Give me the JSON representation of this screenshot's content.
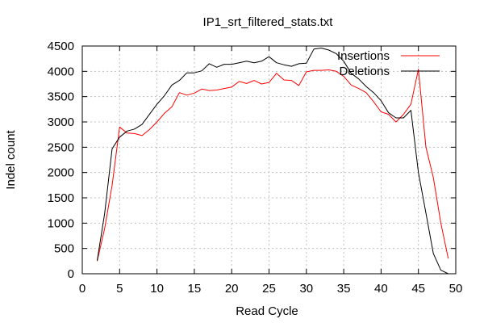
{
  "chart_data": {
    "type": "line",
    "title": "IP1_srt_filtered_stats.txt",
    "xlabel": "Read Cycle",
    "ylabel": "Indel count",
    "xlim": [
      0,
      50
    ],
    "ylim": [
      0,
      4500
    ],
    "xticks": [
      0,
      5,
      10,
      15,
      20,
      25,
      30,
      35,
      40,
      45,
      50
    ],
    "yticks": [
      0,
      500,
      1000,
      1500,
      2000,
      2500,
      3000,
      3500,
      4000,
      4500
    ],
    "grid": true,
    "legend_position": "top-right",
    "series": [
      {
        "name": "Insertions",
        "color": "#ff0000",
        "points": [
          [
            2,
            250
          ],
          [
            3,
            900
          ],
          [
            4,
            1750
          ],
          [
            5,
            2900
          ],
          [
            6,
            2780
          ],
          [
            7,
            2770
          ],
          [
            8,
            2730
          ],
          [
            9,
            2850
          ],
          [
            10,
            3000
          ],
          [
            11,
            3170
          ],
          [
            12,
            3300
          ],
          [
            13,
            3580
          ],
          [
            14,
            3530
          ],
          [
            15,
            3570
          ],
          [
            16,
            3650
          ],
          [
            17,
            3620
          ],
          [
            18,
            3630
          ],
          [
            19,
            3660
          ],
          [
            20,
            3690
          ],
          [
            21,
            3800
          ],
          [
            22,
            3760
          ],
          [
            23,
            3820
          ],
          [
            24,
            3750
          ],
          [
            25,
            3780
          ],
          [
            26,
            3960
          ],
          [
            27,
            3830
          ],
          [
            28,
            3820
          ],
          [
            29,
            3720
          ],
          [
            30,
            3990
          ],
          [
            31,
            4020
          ],
          [
            32,
            4020
          ],
          [
            33,
            4030
          ],
          [
            34,
            4000
          ],
          [
            35,
            3900
          ],
          [
            36,
            3730
          ],
          [
            37,
            3660
          ],
          [
            38,
            3580
          ],
          [
            39,
            3400
          ],
          [
            40,
            3200
          ],
          [
            41,
            3150
          ],
          [
            42,
            3000
          ],
          [
            43,
            3150
          ],
          [
            44,
            3350
          ],
          [
            45,
            4040
          ],
          [
            46,
            2500
          ],
          [
            47,
            1900
          ],
          [
            48,
            1000
          ],
          [
            49,
            300
          ]
        ]
      },
      {
        "name": "Deletions",
        "color": "#000000",
        "points": [
          [
            2,
            260
          ],
          [
            3,
            1200
          ],
          [
            4,
            2470
          ],
          [
            5,
            2700
          ],
          [
            6,
            2820
          ],
          [
            7,
            2860
          ],
          [
            8,
            2950
          ],
          [
            9,
            3150
          ],
          [
            10,
            3350
          ],
          [
            11,
            3520
          ],
          [
            12,
            3730
          ],
          [
            13,
            3820
          ],
          [
            14,
            3970
          ],
          [
            15,
            3970
          ],
          [
            16,
            4010
          ],
          [
            17,
            4150
          ],
          [
            18,
            4080
          ],
          [
            19,
            4140
          ],
          [
            20,
            4140
          ],
          [
            21,
            4170
          ],
          [
            22,
            4200
          ],
          [
            23,
            4170
          ],
          [
            24,
            4200
          ],
          [
            25,
            4290
          ],
          [
            26,
            4170
          ],
          [
            27,
            4130
          ],
          [
            28,
            4100
          ],
          [
            29,
            4150
          ],
          [
            30,
            4160
          ],
          [
            31,
            4440
          ],
          [
            32,
            4460
          ],
          [
            33,
            4420
          ],
          [
            34,
            4350
          ],
          [
            35,
            4200
          ],
          [
            36,
            3960
          ],
          [
            37,
            3850
          ],
          [
            38,
            3700
          ],
          [
            39,
            3580
          ],
          [
            40,
            3420
          ],
          [
            41,
            3180
          ],
          [
            42,
            3080
          ],
          [
            43,
            3080
          ],
          [
            44,
            3230
          ],
          [
            45,
            2000
          ],
          [
            46,
            1200
          ],
          [
            47,
            400
          ],
          [
            48,
            70
          ],
          [
            49,
            0
          ]
        ]
      }
    ]
  }
}
